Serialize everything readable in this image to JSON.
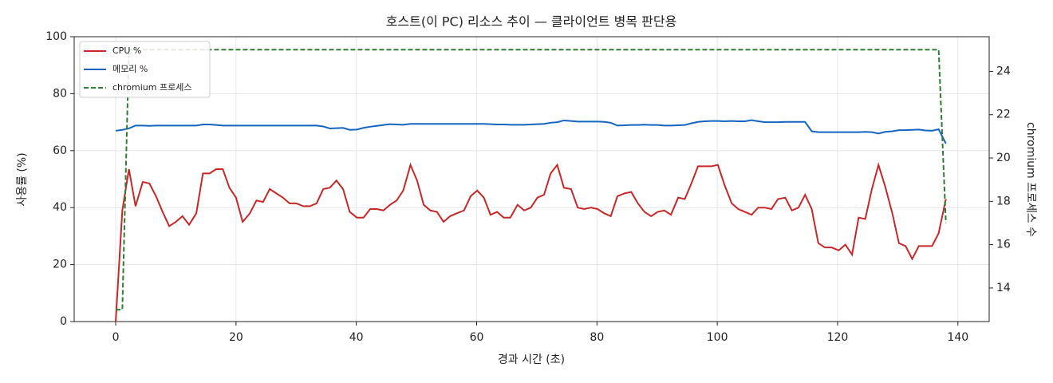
{
  "chart_data": {
    "type": "line",
    "title": "호스트(이 PC) 리소스 추이 — 클라이언트 병목 판단용",
    "xlabel": "경과 시간 (초)",
    "ylabel": "사용률 (%)",
    "y2label": "chromium 프로세스 수",
    "x": [
      0,
      1.1,
      2.2,
      3.3,
      4.5,
      5.6,
      6.7,
      7.8,
      8.9,
      10,
      11.1,
      12.2,
      13.4,
      14.5,
      15.6,
      16.7,
      17.8,
      18.9,
      20,
      21.1,
      22.3,
      23.4,
      24.5,
      25.6,
      26.7,
      27.8,
      28.9,
      30,
      31.2,
      32.3,
      33.4,
      34.5,
      35.6,
      36.7,
      37.8,
      38.9,
      40.1,
      41.2,
      42.3,
      43.4,
      44.5,
      45.6,
      46.7,
      47.8,
      49,
      50.1,
      51.2,
      52.3,
      53.4,
      54.5,
      55.6,
      56.7,
      57.9,
      59,
      60.1,
      61.2,
      62.3,
      63.4,
      64.5,
      65.6,
      66.8,
      67.9,
      69,
      70.1,
      71.2,
      72.3,
      73.4,
      74.5,
      75.7,
      76.8,
      77.9,
      79,
      80.1,
      81.2,
      82.3,
      83.4,
      84.6,
      85.7,
      86.8,
      87.9,
      89,
      90.1,
      91.2,
      92.3,
      93.5,
      94.6,
      95.7,
      96.8,
      97.9,
      99,
      100.1,
      101.2,
      102.4,
      103.5,
      104.6,
      105.7,
      106.8,
      107.9,
      109,
      110.1,
      111.3,
      112.4,
      113.5,
      114.6,
      115.7,
      116.8,
      117.9,
      119,
      120.2,
      121.3,
      122.4,
      123.5,
      124.6,
      125.7,
      126.8,
      127.9,
      129.1,
      130.2,
      131.3,
      132.4,
      133.5,
      134.6,
      135.7,
      136.8,
      138
    ],
    "series": [
      {
        "name": "CPU %",
        "color": "#c62828",
        "linestyle": "solid",
        "axis": "y",
        "values": [
          0,
          39,
          53.5,
          40.5,
          49,
          48.5,
          44,
          38.5,
          33.5,
          35,
          37,
          34,
          38,
          52,
          52,
          53.5,
          53.5,
          47,
          43.5,
          35,
          38,
          42.5,
          42,
          46.5,
          45,
          43.5,
          41.5,
          41.5,
          40.5,
          40.5,
          41.5,
          46.5,
          47,
          49.5,
          46.5,
          38.5,
          36.5,
          36.5,
          39.5,
          39.5,
          39,
          41,
          42.5,
          46,
          55,
          49.5,
          41,
          39,
          38.5,
          35,
          37,
          38,
          39,
          44,
          46,
          43.5,
          37.5,
          38.5,
          36.5,
          36.5,
          41,
          39,
          40,
          43.5,
          44.5,
          52,
          55,
          47,
          46.5,
          40,
          39.5,
          40,
          39.5,
          38,
          37,
          44,
          45,
          45.5,
          41.5,
          38.5,
          37,
          38.5,
          39,
          37.5,
          43.5,
          43,
          48.5,
          54.5,
          54.5,
          54.5,
          55,
          48,
          41.5,
          39.5,
          38.5,
          37.5,
          40,
          40,
          39.5,
          43,
          43.5,
          39,
          40,
          44.5,
          39.5,
          27.5,
          26,
          26,
          25,
          27,
          23.5,
          36.5,
          36,
          46.5,
          55,
          47.5,
          38,
          27.5,
          26.5,
          22,
          26.5,
          26.5,
          26.5,
          31,
          43
        ]
      },
      {
        "name": "메모리 %",
        "color": "#1565c0",
        "linestyle": "solid",
        "axis": "y",
        "values": [
          67,
          67.3,
          67.8,
          68.8,
          68.8,
          68.7,
          68.8,
          68.8,
          68.8,
          68.8,
          68.8,
          68.8,
          68.8,
          69.2,
          69.2,
          69,
          68.8,
          68.8,
          68.8,
          68.8,
          68.8,
          68.8,
          68.8,
          68.8,
          68.8,
          68.8,
          68.8,
          68.8,
          68.8,
          68.8,
          68.8,
          68.5,
          67.8,
          67.9,
          68,
          67.3,
          67.4,
          68,
          68.4,
          68.7,
          69,
          69.3,
          69.2,
          69.1,
          69.4,
          69.4,
          69.4,
          69.4,
          69.4,
          69.4,
          69.4,
          69.4,
          69.4,
          69.4,
          69.4,
          69.4,
          69.3,
          69.2,
          69.2,
          69.1,
          69.1,
          69.1,
          69.2,
          69.3,
          69.4,
          69.8,
          70,
          70.6,
          70.4,
          70.2,
          70.2,
          70.2,
          70.2,
          70.1,
          69.8,
          68.8,
          68.9,
          69,
          69,
          69.1,
          69,
          69,
          68.8,
          68.8,
          68.9,
          69,
          69.6,
          70.1,
          70.3,
          70.4,
          70.4,
          70.3,
          70.4,
          70.3,
          70.3,
          70.7,
          70.3,
          70,
          70,
          70,
          70.1,
          70.1,
          70.1,
          70.1,
          66.8,
          66.5,
          66.5,
          66.5,
          66.5,
          66.5,
          66.5,
          66.5,
          66.6,
          66.5,
          66,
          66.6,
          66.8,
          67.2,
          67.2,
          67.3,
          67.4,
          67.1,
          67,
          67.5,
          62.5
        ]
      },
      {
        "name": "chromium 프로세스",
        "color": "#2e7d32",
        "linestyle": "dashed",
        "axis": "y2",
        "values": [
          13,
          13,
          25,
          25,
          25,
          25,
          25,
          25,
          25,
          25,
          25,
          25,
          25,
          25,
          25,
          25,
          25,
          25,
          25,
          25,
          25,
          25,
          25,
          25,
          25,
          25,
          25,
          25,
          25,
          25,
          25,
          25,
          25,
          25,
          25,
          25,
          25,
          25,
          25,
          25,
          25,
          25,
          25,
          25,
          25,
          25,
          25,
          25,
          25,
          25,
          25,
          25,
          25,
          25,
          25,
          25,
          25,
          25,
          25,
          25,
          25,
          25,
          25,
          25,
          25,
          25,
          25,
          25,
          25,
          25,
          25,
          25,
          25,
          25,
          25,
          25,
          25,
          25,
          25,
          25,
          25,
          25,
          25,
          25,
          25,
          25,
          25,
          25,
          25,
          25,
          25,
          25,
          25,
          25,
          25,
          25,
          25,
          25,
          25,
          25,
          25,
          25,
          25,
          25,
          25,
          25,
          25,
          25,
          25,
          25,
          25,
          25,
          25,
          25,
          25,
          25,
          25,
          25,
          25,
          25,
          25,
          25,
          25,
          25,
          17
        ]
      }
    ],
    "xlim": [
      -6.9,
      145.2
    ],
    "xticks": [
      0,
      20,
      40,
      60,
      80,
      100,
      120,
      140
    ],
    "ylim": [
      0,
      100
    ],
    "yticks": [
      0,
      20,
      40,
      60,
      80,
      100
    ],
    "y2lim": [
      12.45,
      25.6
    ],
    "y2ticks": [
      14,
      16,
      18,
      20,
      22,
      24
    ],
    "grid": true,
    "legend": "upper left"
  }
}
